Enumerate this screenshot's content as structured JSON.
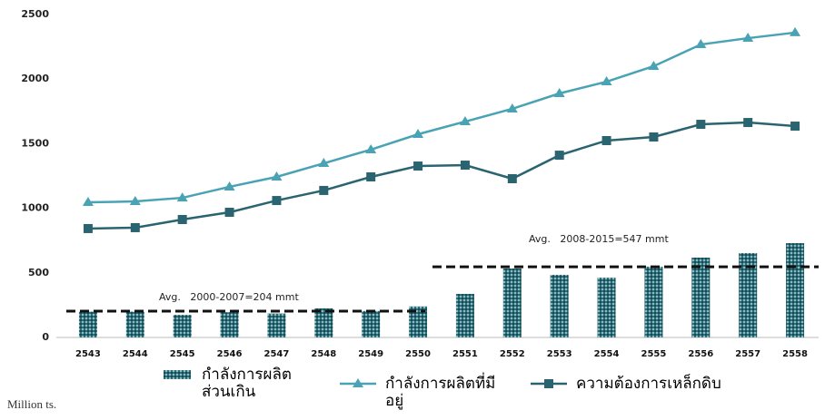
{
  "chart_data": {
    "type": "bar-line",
    "y_unit_label": "Million ts.",
    "categories": [
      "2543",
      "2544",
      "2545",
      "2546",
      "2547",
      "2548",
      "2549",
      "2550",
      "2551",
      "2552",
      "2553",
      "2554",
      "2555",
      "2556",
      "2557",
      "2558"
    ],
    "series": [
      {
        "name": "กำลังการผลิตส่วนเกิน",
        "kind": "bar",
        "color": "#1f5f6b",
        "values": [
          200,
          200,
          175,
          195,
          185,
          225,
          205,
          240,
          337,
          534,
          485,
          463,
          548,
          618,
          653,
          730
        ]
      },
      {
        "name": "กำลังการผลิตที่มีอยู่",
        "kind": "line",
        "marker": "triangle",
        "color": "#4aa3b5",
        "values": [
          1046,
          1053,
          1081,
          1166,
          1243,
          1348,
          1454,
          1573,
          1671,
          1770,
          1889,
          1980,
          2100,
          2268,
          2317,
          2360
        ]
      },
      {
        "name": "ความต้องการเหล็กดิบ",
        "kind": "line",
        "marker": "square",
        "color": "#2a6470",
        "values": [
          843,
          850,
          913,
          969,
          1060,
          1138,
          1243,
          1327,
          1334,
          1229,
          1411,
          1524,
          1552,
          1650,
          1664,
          1636
        ]
      }
    ],
    "annotations": [
      {
        "text": "Avg.   2000-2007=204 mmt",
        "value": 204
      },
      {
        "text": "Avg.   2008-2015=547 mmt",
        "value": 547
      }
    ],
    "ylim": [
      0,
      2500
    ],
    "yticks": [
      0,
      500,
      1000,
      1500,
      2000,
      2500
    ],
    "grid": false
  }
}
